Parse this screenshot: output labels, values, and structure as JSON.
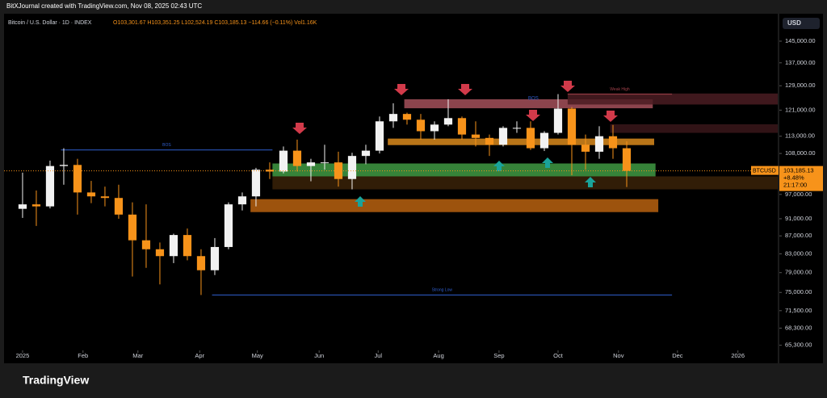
{
  "header": {
    "credit": "BitXJournal created with TradingView.com, Nov 08, 2025 02:43 UTC",
    "footer": "TradingView"
  },
  "chart_data": {
    "type": "candlestick",
    "title": "Bitcoin / U.S. Dollar · 1D · INDEX",
    "ohlc_legend": "O103,301.67 H103,351.25 L102,524.19 C103,185.13 −114.66 (−0.11%) Vol1.16K",
    "currency": "USD",
    "log_scale": true,
    "up_color": "#f2f2f2",
    "down_color": "#f7931a",
    "x": [
      0,
      1,
      2,
      3,
      4,
      5,
      6,
      7,
      8,
      9,
      10,
      11,
      12,
      13,
      14,
      15,
      16,
      17,
      18,
      19,
      20,
      21,
      22,
      23,
      24,
      25,
      26,
      27,
      28,
      29,
      30,
      31,
      32,
      33,
      34,
      35,
      36,
      37,
      38,
      39,
      40,
      41,
      42,
      43,
      44
    ],
    "open": [
      93400,
      94500,
      94000,
      104500,
      104800,
      97500,
      96500,
      96100,
      92000,
      86000,
      84000,
      82500,
      87200,
      82500,
      79500,
      84500,
      94500,
      96500,
      103500,
      103000,
      108800,
      104500,
      105500,
      105500,
      101000,
      107300,
      108800,
      117500,
      119800,
      118000,
      114500,
      116500,
      118500,
      113500,
      112500,
      110500,
      115500,
      115500,
      109500,
      114000,
      121500,
      110500,
      108500,
      113000,
      109500
    ],
    "high": [
      102700,
      98000,
      106000,
      109500,
      106500,
      100500,
      99000,
      99500,
      95000,
      94500,
      85500,
      87500,
      88700,
      84000,
      86500,
      95000,
      97500,
      104000,
      105500,
      110000,
      112000,
      106500,
      110500,
      108500,
      108200,
      110500,
      119000,
      123200,
      120200,
      119800,
      117500,
      124500,
      119000,
      117500,
      113500,
      116000,
      117500,
      117500,
      114500,
      126200,
      122000,
      113500,
      116000,
      116400,
      111500
    ],
    "low": [
      91200,
      89300,
      93500,
      99500,
      92000,
      94800,
      94000,
      91000,
      78200,
      80000,
      76600,
      81000,
      81600,
      74500,
      78500,
      84000,
      93000,
      94000,
      101000,
      102500,
      103000,
      100400,
      103500,
      99000,
      98300,
      105000,
      108000,
      115500,
      116500,
      112000,
      112000,
      116000,
      112000,
      110000,
      107300,
      110000,
      114000,
      109000,
      108700,
      113500,
      102000,
      103500,
      106500,
      106500,
      98900
    ],
    "close": [
      94500,
      94000,
      104500,
      104800,
      97500,
      96500,
      96100,
      92000,
      86000,
      84000,
      82500,
      87200,
      82500,
      79500,
      84500,
      94500,
      96500,
      103500,
      103000,
      108800,
      104500,
      105500,
      105500,
      101000,
      107300,
      108800,
      117500,
      119800,
      118000,
      114500,
      116500,
      118500,
      113500,
      112500,
      110500,
      115500,
      115500,
      109500,
      114000,
      121500,
      110500,
      108500,
      113000,
      109500,
      103185.13
    ],
    "xlim": [
      -1.35,
      55
    ],
    "xticks": [
      {
        "value": 0,
        "label": "2025"
      },
      {
        "value": 4.4,
        "label": "Feb"
      },
      {
        "value": 8.4,
        "label": "Mar"
      },
      {
        "value": 12.9,
        "label": "Apr"
      },
      {
        "value": 17.1,
        "label": "May"
      },
      {
        "value": 21.6,
        "label": "Jun"
      },
      {
        "value": 25.9,
        "label": "Jul"
      },
      {
        "value": 30.3,
        "label": "Aug"
      },
      {
        "value": 34.7,
        "label": "Sep"
      },
      {
        "value": 39,
        "label": "Oct"
      },
      {
        "value": 43.4,
        "label": "Nov"
      },
      {
        "value": 47.7,
        "label": "Dec"
      },
      {
        "value": 52.1,
        "label": "2026"
      }
    ],
    "ylim": [
      64700,
      155500
    ],
    "yticks": [
      {
        "value": 145000,
        "label": "145,000.00"
      },
      {
        "value": 137000,
        "label": "137,000.00"
      },
      {
        "value": 129000,
        "label": "129,000.00"
      },
      {
        "value": 121000,
        "label": "121,000.00"
      },
      {
        "value": 113000,
        "label": "113,000.00"
      },
      {
        "value": 108000,
        "label": "108,000.00"
      },
      {
        "value": 97000,
        "label": "97,000.00"
      },
      {
        "value": 91000,
        "label": "91,000.00"
      },
      {
        "value": 87000,
        "label": "87,000.00"
      },
      {
        "value": 83000,
        "label": "83,000.00"
      },
      {
        "value": 79000,
        "label": "79,000.00"
      },
      {
        "value": 75000,
        "label": "75,000.00"
      },
      {
        "value": 71500,
        "label": "71,500.00"
      },
      {
        "value": 68300,
        "label": "68,300.00"
      },
      {
        "value": 65300,
        "label": "65,300.00"
      }
    ],
    "last_price": {
      "symbol": "BTCUSD",
      "value": 103185.13,
      "label": "103,185.13",
      "change": "+8.48%",
      "countdown": "21:17:00"
    },
    "zones": [
      {
        "x": [
          16.6,
          46.3
        ],
        "y": [
          92600,
          95800
        ],
        "color": "#b8620f"
      },
      {
        "x": [
          18.2,
          55
        ],
        "y": [
          98300,
          101700
        ],
        "color": "#3a2208"
      },
      {
        "x": [
          18.2,
          46.1
        ],
        "y": [
          101700,
          105200
        ],
        "color": "#3f9a43"
      },
      {
        "x": [
          26.6,
          46
        ],
        "y": [
          110400,
          112300
        ],
        "color": "#d98a1c"
      },
      {
        "x": [
          27.8,
          45.9
        ],
        "y": [
          121600,
          124500
        ],
        "color": "#a4505a"
      },
      {
        "x": [
          39.7,
          55
        ],
        "y": [
          122800,
          126400
        ],
        "color": "#4a1c22"
      },
      {
        "x": [
          42.8,
          55
        ],
        "y": [
          114000,
          116600
        ],
        "color": "#3a161a"
      }
    ],
    "levels": [
      {
        "label": "BOS",
        "x": [
          2.8,
          18.2
        ],
        "y": 109000,
        "color": "#2f5fd0"
      },
      {
        "label": "Strong Low",
        "x": [
          13.8,
          47.3
        ],
        "y": 74500,
        "color": "#2f5fd0"
      },
      {
        "label": "Weak High",
        "x": [
          39.7,
          47.3
        ],
        "y": 126200,
        "color": "#a0404a"
      }
    ],
    "annotations": [
      {
        "text": "BOS",
        "x": 37.2,
        "y": 124800,
        "color": "#2f5fd0"
      }
    ]
  }
}
